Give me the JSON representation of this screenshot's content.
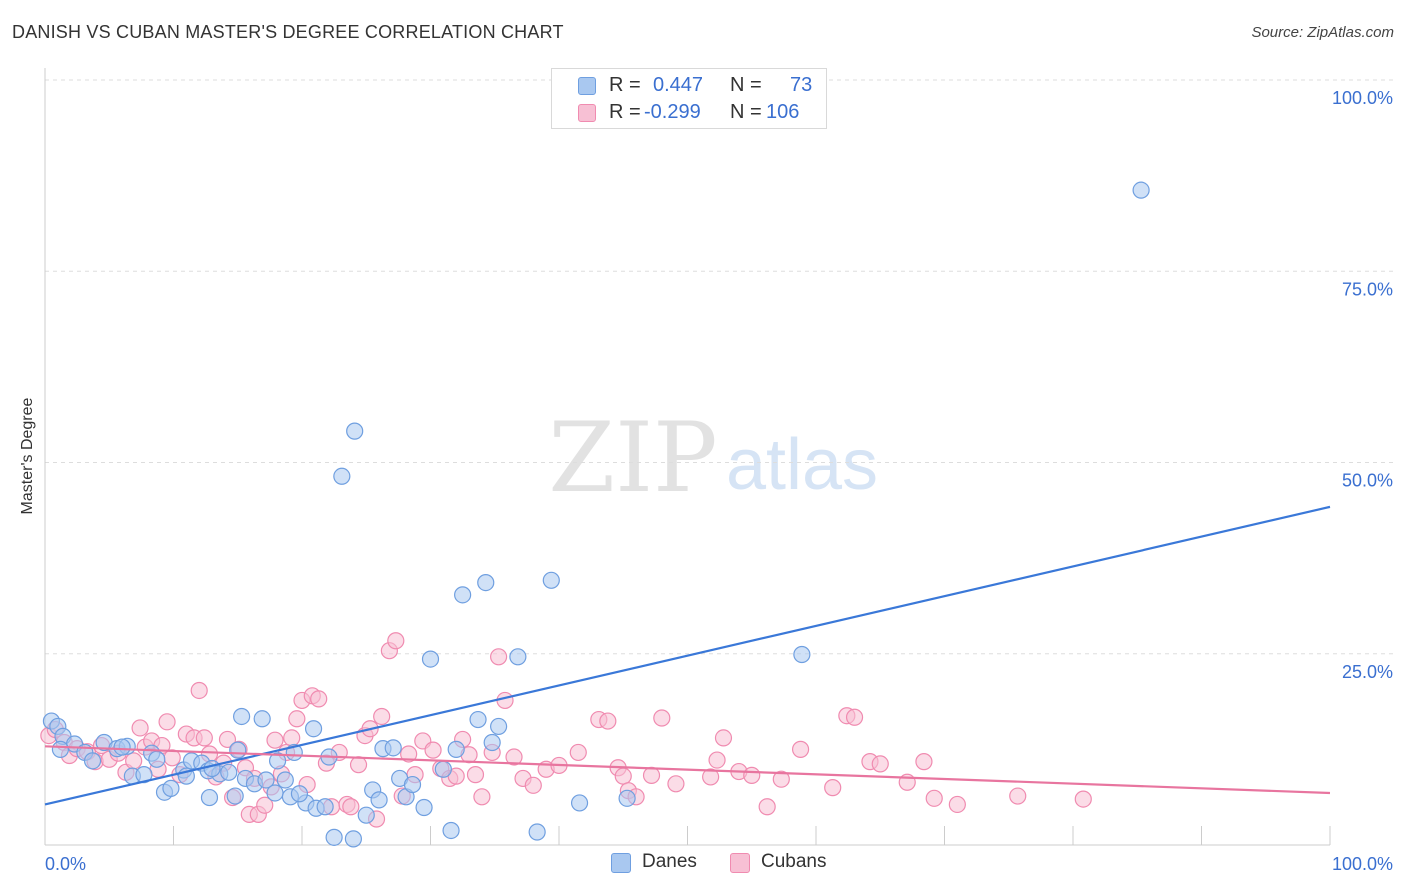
{
  "title": "DANISH VS CUBAN MASTER'S DEGREE CORRELATION CHART",
  "source": "Source: ZipAtlas.com",
  "watermark": {
    "zip": "ZIP",
    "atlas": "atlas"
  },
  "colors": {
    "danes": "#6f9fe0",
    "danes_fill": "#a9c8f0",
    "danes_line": "#3a78d8",
    "cubans": "#f08bb0",
    "cubans_fill": "#f7c0d4",
    "cubans_line": "#e8759f",
    "value_text": "#3a6fd0",
    "grid": "#dddddd"
  },
  "legend": {
    "r_label": "R =",
    "n_label": "N =",
    "danes": {
      "r": "0.447",
      "n": "73"
    },
    "cubans": {
      "r": "-0.299",
      "n": "106"
    }
  },
  "bottom_legend": {
    "danes": "Danes",
    "cubans": "Cubans"
  },
  "chart_data": {
    "type": "scatter",
    "title": "DANISH VS CUBAN MASTER'S DEGREE CORRELATION CHART",
    "xlabel": "",
    "ylabel": "Master's Degree",
    "xlim": [
      0,
      100
    ],
    "ylim": [
      0,
      100
    ],
    "x_tick_labels": [
      "0.0%",
      "100.0%"
    ],
    "y_tick_labels": [
      "100.0%",
      "75.0%",
      "50.0%",
      "25.0%"
    ],
    "y_ticks": [
      100,
      75,
      50,
      25
    ],
    "grid": true,
    "legend_position": "top-center",
    "series": [
      {
        "name": "Danes",
        "r": 0.447,
        "n": 73,
        "trend": {
          "x": [
            0,
            100
          ],
          "y": [
            5.3,
            44.2
          ]
        },
        "points": [
          [
            0.5,
            16.2
          ],
          [
            1.0,
            15.5
          ],
          [
            1.4,
            14.2
          ],
          [
            2.3,
            13.2
          ],
          [
            3.1,
            12.1
          ],
          [
            3.7,
            11.0
          ],
          [
            4.6,
            13.4
          ],
          [
            5.6,
            12.6
          ],
          [
            6.4,
            12.9
          ],
          [
            6.8,
            9.0
          ],
          [
            7.7,
            9.2
          ],
          [
            8.3,
            12.0
          ],
          [
            8.7,
            11.2
          ],
          [
            9.3,
            6.9
          ],
          [
            9.8,
            7.4
          ],
          [
            10.8,
            9.8
          ],
          [
            11.4,
            11.0
          ],
          [
            12.2,
            10.7
          ],
          [
            12.7,
            9.7
          ],
          [
            12.8,
            6.2
          ],
          [
            13.6,
            9.3
          ],
          [
            14.3,
            9.5
          ],
          [
            14.8,
            6.4
          ],
          [
            15.0,
            12.4
          ],
          [
            15.3,
            16.8
          ],
          [
            15.6,
            8.7
          ],
          [
            16.3,
            8.0
          ],
          [
            16.9,
            16.5
          ],
          [
            17.2,
            8.5
          ],
          [
            17.9,
            6.8
          ],
          [
            18.1,
            11.0
          ],
          [
            18.7,
            8.5
          ],
          [
            19.1,
            6.3
          ],
          [
            19.4,
            12.1
          ],
          [
            20.3,
            5.5
          ],
          [
            20.9,
            15.2
          ],
          [
            21.1,
            4.8
          ],
          [
            21.8,
            5.0
          ],
          [
            22.1,
            11.5
          ],
          [
            22.5,
            1.0
          ],
          [
            23.1,
            48.2
          ],
          [
            24.0,
            0.8
          ],
          [
            24.1,
            54.1
          ],
          [
            25.0,
            3.9
          ],
          [
            25.5,
            7.2
          ],
          [
            26.0,
            5.9
          ],
          [
            26.3,
            12.6
          ],
          [
            27.1,
            12.7
          ],
          [
            27.6,
            8.7
          ],
          [
            28.1,
            6.3
          ],
          [
            28.6,
            7.9
          ],
          [
            29.5,
            4.9
          ],
          [
            30.0,
            24.3
          ],
          [
            31.0,
            9.9
          ],
          [
            31.6,
            1.9
          ],
          [
            32.0,
            12.5
          ],
          [
            32.5,
            32.7
          ],
          [
            33.7,
            16.4
          ],
          [
            34.3,
            34.3
          ],
          [
            34.8,
            13.4
          ],
          [
            35.3,
            15.5
          ],
          [
            36.8,
            24.6
          ],
          [
            38.3,
            1.7
          ],
          [
            39.4,
            34.6
          ],
          [
            41.6,
            5.5
          ],
          [
            45.3,
            6.1
          ],
          [
            58.9,
            24.9
          ],
          [
            85.3,
            85.6
          ],
          [
            1.2,
            12.5
          ],
          [
            6.0,
            12.8
          ],
          [
            11.0,
            9.0
          ],
          [
            13.0,
            10.0
          ],
          [
            19.8,
            6.7
          ]
        ]
      },
      {
        "name": "Cubans",
        "r": -0.299,
        "n": 106,
        "trend": {
          "x": [
            0,
            100
          ],
          "y": [
            12.9,
            6.8
          ]
        },
        "points": [
          [
            0.3,
            14.3
          ],
          [
            0.8,
            15.1
          ],
          [
            1.5,
            13.4
          ],
          [
            1.9,
            11.7
          ],
          [
            2.5,
            12.6
          ],
          [
            3.3,
            12.2
          ],
          [
            3.9,
            10.9
          ],
          [
            4.4,
            13.0
          ],
          [
            5.0,
            11.2
          ],
          [
            5.7,
            12.0
          ],
          [
            6.3,
            9.5
          ],
          [
            6.9,
            11.0
          ],
          [
            7.4,
            15.3
          ],
          [
            7.8,
            12.8
          ],
          [
            8.3,
            13.6
          ],
          [
            8.8,
            9.9
          ],
          [
            9.1,
            13.0
          ],
          [
            9.5,
            16.1
          ],
          [
            9.9,
            11.4
          ],
          [
            10.5,
            9.2
          ],
          [
            11.0,
            14.5
          ],
          [
            11.6,
            14.0
          ],
          [
            12.0,
            20.2
          ],
          [
            12.4,
            14.0
          ],
          [
            12.8,
            11.9
          ],
          [
            13.3,
            8.9
          ],
          [
            13.9,
            10.7
          ],
          [
            14.2,
            13.8
          ],
          [
            14.6,
            6.2
          ],
          [
            15.1,
            12.5
          ],
          [
            15.6,
            10.1
          ],
          [
            15.9,
            4.0
          ],
          [
            16.3,
            8.7
          ],
          [
            16.6,
            4.0
          ],
          [
            17.1,
            5.2
          ],
          [
            17.6,
            7.6
          ],
          [
            17.9,
            13.7
          ],
          [
            18.4,
            9.3
          ],
          [
            18.8,
            12.1
          ],
          [
            19.2,
            14.0
          ],
          [
            19.6,
            16.5
          ],
          [
            20.0,
            18.9
          ],
          [
            20.4,
            7.9
          ],
          [
            20.8,
            19.5
          ],
          [
            21.3,
            19.1
          ],
          [
            21.9,
            10.7
          ],
          [
            22.3,
            5.0
          ],
          [
            22.9,
            12.1
          ],
          [
            23.5,
            5.3
          ],
          [
            23.8,
            5.0
          ],
          [
            24.4,
            10.5
          ],
          [
            24.9,
            14.3
          ],
          [
            25.3,
            15.2
          ],
          [
            25.8,
            3.4
          ],
          [
            26.2,
            16.8
          ],
          [
            26.8,
            25.4
          ],
          [
            27.3,
            26.7
          ],
          [
            27.8,
            6.4
          ],
          [
            28.3,
            11.9
          ],
          [
            28.8,
            9.2
          ],
          [
            29.4,
            13.6
          ],
          [
            30.2,
            12.4
          ],
          [
            30.8,
            10.0
          ],
          [
            31.5,
            8.7
          ],
          [
            32.0,
            9.0
          ],
          [
            32.5,
            13.8
          ],
          [
            33.0,
            11.8
          ],
          [
            33.5,
            9.2
          ],
          [
            34.0,
            6.3
          ],
          [
            34.8,
            12.1
          ],
          [
            35.3,
            24.6
          ],
          [
            35.8,
            18.9
          ],
          [
            36.5,
            11.5
          ],
          [
            37.2,
            8.7
          ],
          [
            38.0,
            7.8
          ],
          [
            39.0,
            9.9
          ],
          [
            40.0,
            10.4
          ],
          [
            41.5,
            12.1
          ],
          [
            43.1,
            16.4
          ],
          [
            43.8,
            16.2
          ],
          [
            44.6,
            10.1
          ],
          [
            45.0,
            9.0
          ],
          [
            45.4,
            7.1
          ],
          [
            46.0,
            6.3
          ],
          [
            47.2,
            9.1
          ],
          [
            48.0,
            16.6
          ],
          [
            49.1,
            8.0
          ],
          [
            51.8,
            8.9
          ],
          [
            52.3,
            11.1
          ],
          [
            52.8,
            14.0
          ],
          [
            54.0,
            9.6
          ],
          [
            55.0,
            9.1
          ],
          [
            56.2,
            5.0
          ],
          [
            57.3,
            8.6
          ],
          [
            58.8,
            12.5
          ],
          [
            61.3,
            7.5
          ],
          [
            62.4,
            16.9
          ],
          [
            63.0,
            16.7
          ],
          [
            64.2,
            10.9
          ],
          [
            65.0,
            10.6
          ],
          [
            67.1,
            8.2
          ],
          [
            68.4,
            10.9
          ],
          [
            69.2,
            6.1
          ],
          [
            71.0,
            5.3
          ],
          [
            75.7,
            6.4
          ],
          [
            80.8,
            6.0
          ]
        ]
      }
    ]
  }
}
